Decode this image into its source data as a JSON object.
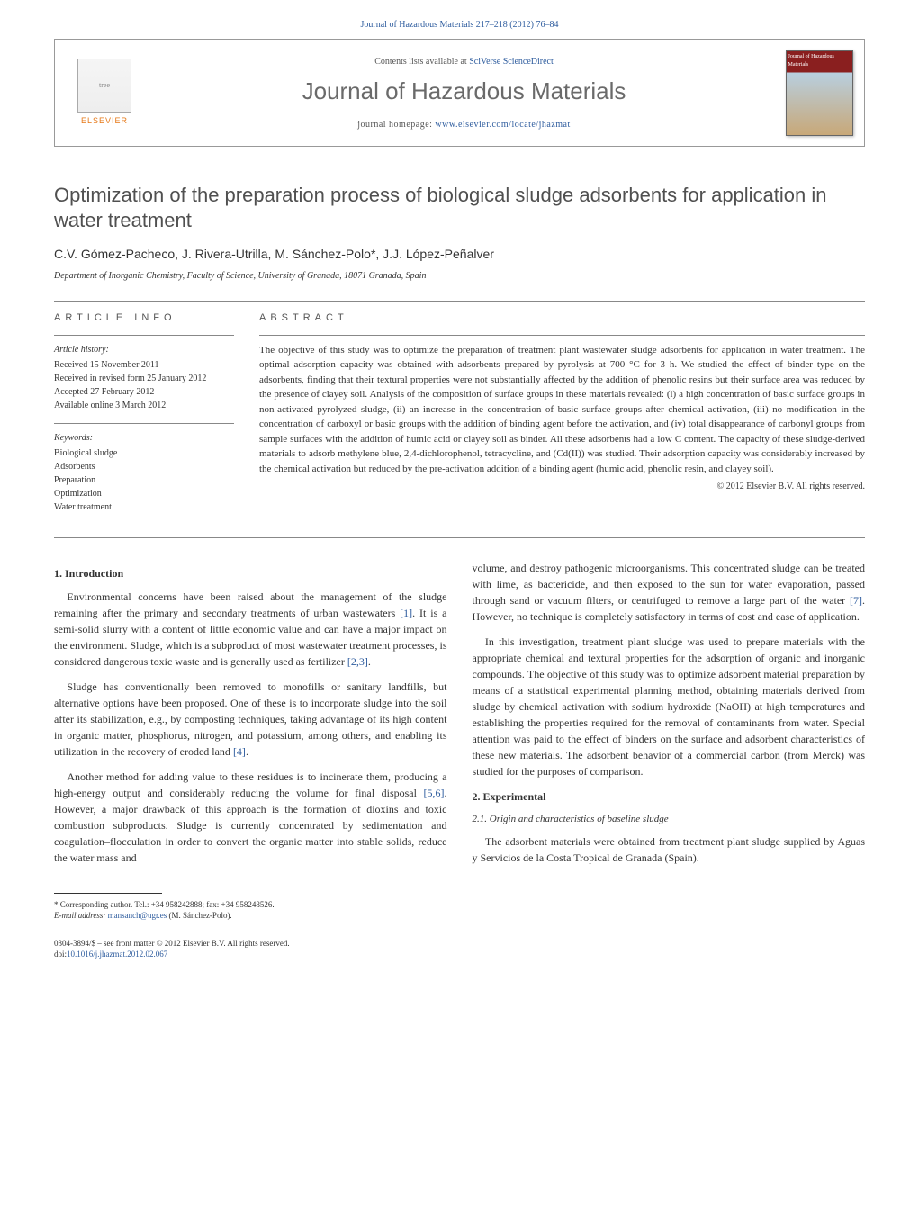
{
  "journal_citation_prefix": "Journal of Hazardous Materials 217–218 (2012) 76–84",
  "header": {
    "contents_prefix": "Contents lists available at ",
    "contents_link": "SciVerse ScienceDirect",
    "journal_name": "Journal of Hazardous Materials",
    "homepage_prefix": "journal homepage: ",
    "homepage_link": "www.elsevier.com/locate/jhazmat",
    "publisher_logo_text": "ELSEVIER",
    "cover_text": "Journal of Hazardous Materials"
  },
  "article": {
    "title": "Optimization of the preparation process of biological sludge adsorbents for application in water treatment",
    "authors": "C.V. Gómez-Pacheco, J. Rivera-Utrilla, M. Sánchez-Polo",
    "corresponding_mark": "*",
    "authors_tail": ", J.J. López-Peñalver",
    "affiliation": "Department of Inorganic Chemistry, Faculty of Science, University of Granada, 18071 Granada, Spain"
  },
  "article_info": {
    "label": "ARTICLE INFO",
    "history_head": "Article history:",
    "received": "Received 15 November 2011",
    "revised": "Received in revised form 25 January 2012",
    "accepted": "Accepted 27 February 2012",
    "online": "Available online 3 March 2012",
    "keywords_head": "Keywords:",
    "keywords": [
      "Biological sludge",
      "Adsorbents",
      "Preparation",
      "Optimization",
      "Water treatment"
    ]
  },
  "abstract": {
    "label": "ABSTRACT",
    "text": "The objective of this study was to optimize the preparation of treatment plant wastewater sludge adsorbents for application in water treatment. The optimal adsorption capacity was obtained with adsorbents prepared by pyrolysis at 700 °C for 3 h. We studied the effect of binder type on the adsorbents, finding that their textural properties were not substantially affected by the addition of phenolic resins but their surface area was reduced by the presence of clayey soil. Analysis of the composition of surface groups in these materials revealed: (i) a high concentration of basic surface groups in non-activated pyrolyzed sludge, (ii) an increase in the concentration of basic surface groups after chemical activation, (iii) no modification in the concentration of carboxyl or basic groups with the addition of binding agent before the activation, and (iv) total disappearance of carbonyl groups from sample surfaces with the addition of humic acid or clayey soil as binder. All these adsorbents had a low C content. The capacity of these sludge-derived materials to adsorb methylene blue, 2,4-dichlorophenol, tetracycline, and (Cd(II)) was studied. Their adsorption capacity was considerably increased by the chemical activation but reduced by the pre-activation addition of a binding agent (humic acid, phenolic resin, and clayey soil).",
    "copyright": "© 2012 Elsevier B.V. All rights reserved."
  },
  "body": {
    "intro_head": "1. Introduction",
    "intro_p1a": "Environmental concerns have been raised about the management of the sludge remaining after the primary and secondary treatments of urban wastewaters ",
    "ref1": "[1]",
    "intro_p1b": ". It is a semi-solid slurry with a content of little economic value and can have a major impact on the environment. Sludge, which is a subproduct of most wastewater treatment processes, is considered dangerous toxic waste and is generally used as fertilizer ",
    "ref23": "[2,3]",
    "intro_p1c": ".",
    "intro_p2a": "Sludge has conventionally been removed to monofills or sanitary landfills, but alternative options have been proposed. One of these is to incorporate sludge into the soil after its stabilization, e.g., by composting techniques, taking advantage of its high content in organic matter, phosphorus, nitrogen, and potassium, among others, and enabling its utilization in the recovery of eroded land ",
    "ref4": "[4]",
    "intro_p2b": ".",
    "intro_p3a": "Another method for adding value to these residues is to incinerate them, producing a high-energy output and considerably reducing the volume for final disposal ",
    "ref56": "[5,6]",
    "intro_p3b": ". However, a major drawback of this approach is the formation of dioxins and toxic combustion subproducts. Sludge is currently concentrated by sedimentation and coagulation–flocculation in order to convert the organic matter into stable solids, reduce the water mass and",
    "col2_p1a": "volume, and destroy pathogenic microorganisms. This concentrated sludge can be treated with lime, as bactericide, and then exposed to the sun for water evaporation, passed through sand or vacuum filters, or centrifuged to remove a large part of the water ",
    "ref7": "[7]",
    "col2_p1b": ". However, no technique is completely satisfactory in terms of cost and ease of application.",
    "col2_p2": "In this investigation, treatment plant sludge was used to prepare materials with the appropriate chemical and textural properties for the adsorption of organic and inorganic compounds. The objective of this study was to optimize adsorbent material preparation by means of a statistical experimental planning method, obtaining materials derived from sludge by chemical activation with sodium hydroxide (NaOH) at high temperatures and establishing the properties required for the removal of contaminants from water. Special attention was paid to the effect of binders on the surface and adsorbent characteristics of these new materials. The adsorbent behavior of a commercial carbon (from Merck) was studied for the purposes of comparison.",
    "exp_head": "2. Experimental",
    "exp_sub": "2.1. Origin and characteristics of baseline sludge",
    "exp_p1": "The adsorbent materials were obtained from treatment plant sludge supplied by Aguas y Servicios de la Costa Tropical de Granada (Spain)."
  },
  "footnote": {
    "corresponding": "Corresponding author. Tel.: +34 958242888; fax: +34 958248526.",
    "email_label": "E-mail address: ",
    "email": "mansanch@ugr.es",
    "email_tail": " (M. Sánchez-Polo)."
  },
  "doi": {
    "line1": "0304-3894/$ – see front matter © 2012 Elsevier B.V. All rights reserved.",
    "line2_prefix": "doi:",
    "line2_link": "10.1016/j.jhazmat.2012.02.067"
  },
  "colors": {
    "link": "#2e5c9e",
    "heading_gray": "#505050",
    "orange": "#e67817"
  }
}
